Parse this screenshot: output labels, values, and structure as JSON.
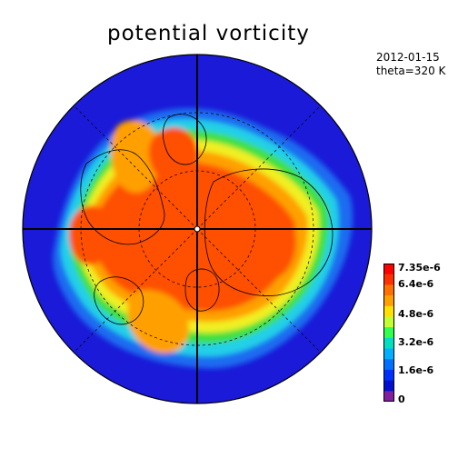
{
  "title": "potential vorticity",
  "date": "2012-01-15",
  "level": "theta=320 K",
  "colorbar": {
    "labels": [
      "7.35e-6",
      "6.4e-6",
      "4.8e-6",
      "3.2e-6",
      "1.6e-6",
      "0"
    ],
    "colors": [
      "#ff0000",
      "#ff3000",
      "#ff7000",
      "#ffa000",
      "#ffe000",
      "#c0ff30",
      "#30ff50",
      "#00e0c0",
      "#00b0ff",
      "#0070ff",
      "#0030ff",
      "#0010d0",
      "#8020a0"
    ]
  },
  "map": {
    "projection": "north-polar-stereographic",
    "ocean_color": "#1a1ad8",
    "colors": {
      "low": "#1a1ad8",
      "mid_low": "#1e6cf0",
      "cyan": "#20d0e8",
      "green": "#40e040",
      "yellow": "#f0f020",
      "orange": "#ffa000",
      "red_orange": "#ff5000",
      "red": "#ff2000"
    }
  }
}
